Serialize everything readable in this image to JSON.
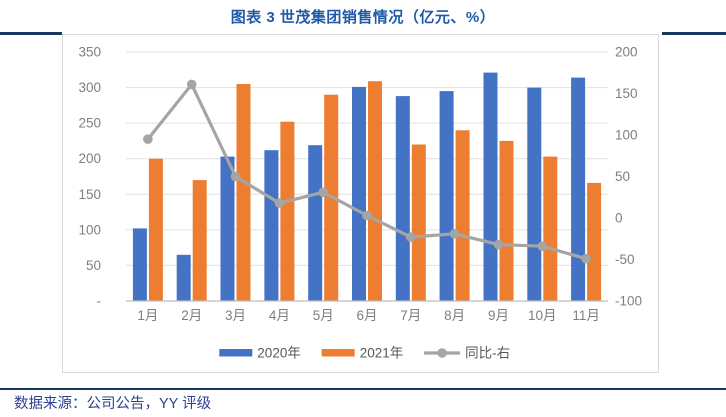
{
  "title": "图表 3 世茂集团销售情况（亿元、%）",
  "footer": {
    "source": "数据来源：公司公告，YY 评级"
  },
  "colors": {
    "title_text": "#1F5AA8",
    "rule": "#17375E",
    "footer_text": "#2E4191",
    "chart_border": "#D9D9D9",
    "grid": "#E0E0E0",
    "axis_line": "#BFBFBF",
    "tick_text": "#7F7F7F",
    "legend_text": "#595959",
    "bar_2020": "#4472C4",
    "bar_2021": "#ED7D31",
    "yoy_line": "#A5A5A5"
  },
  "chart_data": {
    "type": "bar+line combo (dual axis)",
    "title": "图表 3 世茂集团销售情况（亿元、%）",
    "categories": [
      "1月",
      "2月",
      "3月",
      "4月",
      "5月",
      "6月",
      "7月",
      "8月",
      "9月",
      "10月",
      "11月"
    ],
    "series": [
      {
        "name": "2020年",
        "type": "bar",
        "axis": "left",
        "color": "#4472C4",
        "values": [
          102,
          65,
          203,
          212,
          219,
          301,
          288,
          295,
          321,
          300,
          314
        ]
      },
      {
        "name": "2021年",
        "type": "bar",
        "axis": "left",
        "color": "#ED7D31",
        "values": [
          200,
          170,
          305,
          252,
          290,
          309,
          220,
          240,
          225,
          203,
          166
        ]
      },
      {
        "name": "同比-右",
        "type": "line",
        "axis": "right",
        "color": "#A5A5A5",
        "values": [
          95,
          161,
          50,
          18,
          31,
          3,
          -23,
          -19,
          -32,
          -34,
          -49
        ]
      }
    ],
    "left_axis": {
      "min": 0,
      "max": 350,
      "step": 50,
      "tick_labels_top_to_bottom": [
        "350",
        "300",
        "250",
        "200",
        "150",
        "100",
        "50",
        "-"
      ]
    },
    "right_axis": {
      "min": -100,
      "max": 200,
      "step": 50,
      "tick_labels_top_to_bottom": [
        "200",
        "150",
        "100",
        "50",
        "0",
        "-50",
        "-100"
      ]
    },
    "legend_position": "bottom",
    "grid": true
  }
}
